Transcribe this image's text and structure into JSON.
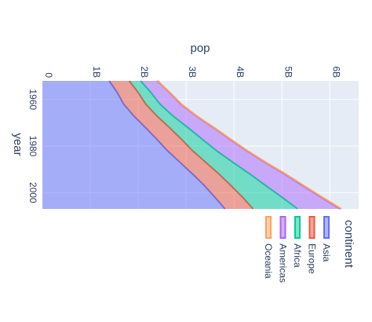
{
  "chart_data": {
    "type": "area",
    "orientation": "horizontal-stacked",
    "xlabel": "pop",
    "ylabel": "year",
    "x_ticks": [
      {
        "value": 0,
        "label": "0"
      },
      {
        "value": 1000000000,
        "label": "1B"
      },
      {
        "value": 2000000000,
        "label": "2B"
      },
      {
        "value": 3000000000,
        "label": "3B"
      },
      {
        "value": 4000000000,
        "label": "4B"
      },
      {
        "value": 5000000000,
        "label": "5B"
      },
      {
        "value": 6000000000,
        "label": "6B"
      }
    ],
    "y_ticks": [
      {
        "value": 1960,
        "label": "1960"
      },
      {
        "value": 1980,
        "label": "1980"
      },
      {
        "value": 2000,
        "label": "2000"
      }
    ],
    "xlim": [
      0,
      6600000000
    ],
    "ylim": [
      1952,
      2007
    ],
    "grid": true,
    "legend_title": "continent",
    "legend_position": "bottom-right",
    "years": [
      1952,
      1957,
      1962,
      1967,
      1972,
      1977,
      1982,
      1987,
      1992,
      1997,
      2002,
      2007
    ],
    "series": [
      {
        "name": "Asia",
        "color": "#636efa",
        "values": [
          1395,
          1562,
          1697,
          1906,
          2150,
          2385,
          2610,
          2872,
          3133,
          3384,
          3601,
          3812
        ]
      },
      {
        "name": "Europe",
        "color": "#ef553b",
        "values": [
          418,
          438,
          461,
          481,
          500,
          514,
          525,
          539,
          550,
          553,
          578,
          586
        ]
      },
      {
        "name": "Africa",
        "color": "#00cc96",
        "values": [
          238,
          265,
          297,
          336,
          385,
          433,
          500,
          565,
          646,
          727,
          823,
          930
        ]
      },
      {
        "name": "Americas",
        "color": "#ab63fa",
        "values": [
          345,
          386,
          433,
          481,
          530,
          576,
          626,
          668,
          722,
          769,
          816,
          884
        ]
      },
      {
        "name": "Oceania",
        "color": "#ffa15a",
        "values": [
          11,
          12,
          14,
          15,
          17,
          18,
          19,
          21,
          22,
          24,
          25,
          26
        ]
      }
    ],
    "value_unit_multiplier": 1000000
  }
}
